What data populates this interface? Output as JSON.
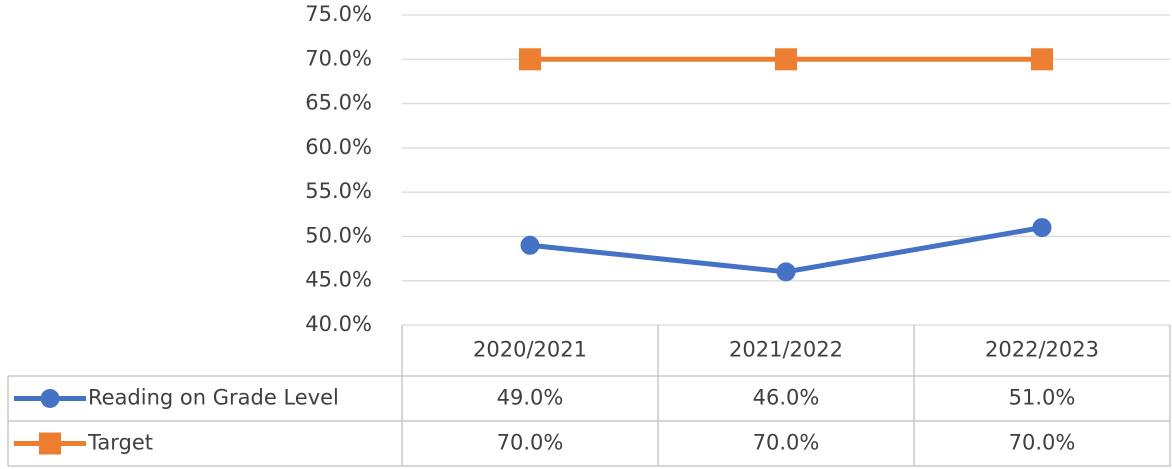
{
  "chart_data": {
    "type": "line",
    "categories": [
      "2020/2021",
      "2021/2022",
      "2022/2023"
    ],
    "series": [
      {
        "name": "Reading on Grade Level",
        "color": "#4472c4",
        "marker": "circle",
        "values": [
          49,
          46,
          51
        ],
        "value_labels": [
          "49.0%",
          "46.0%",
          "51.0%"
        ]
      },
      {
        "name": "Target",
        "color": "#ed7d31",
        "marker": "square",
        "values": [
          70,
          70,
          70
        ],
        "value_labels": [
          "70.0%",
          "70.0%",
          "70.0%"
        ]
      }
    ],
    "ylim": [
      40,
      75
    ],
    "yticks": [
      {
        "value": 40,
        "label": "40.0%"
      },
      {
        "value": 45,
        "label": "45.0%"
      },
      {
        "value": 50,
        "label": "50.0%"
      },
      {
        "value": 55,
        "label": "55.0%"
      },
      {
        "value": 60,
        "label": "60.0%"
      },
      {
        "value": 65,
        "label": "65.0%"
      },
      {
        "value": 70,
        "label": "70.0%"
      },
      {
        "value": 75,
        "label": "75.0%"
      }
    ],
    "grid": true,
    "data_table": true
  }
}
